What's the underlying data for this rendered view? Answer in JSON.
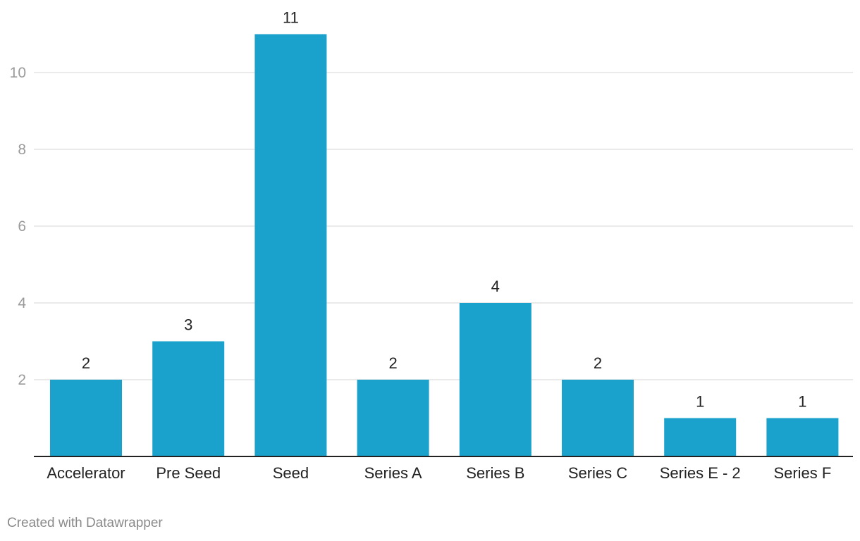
{
  "chart_data": {
    "type": "bar",
    "categories": [
      "Accelerator",
      "Pre Seed",
      "Seed",
      "Series A",
      "Series B",
      "Series C",
      "Series E - 2",
      "Series F"
    ],
    "values": [
      2,
      3,
      11,
      2,
      4,
      2,
      1,
      1
    ],
    "y_ticks": [
      2,
      4,
      6,
      8,
      10
    ],
    "ylim": [
      0,
      11
    ],
    "grid": true,
    "data_labels": true,
    "bar_color": "#1aa1cc",
    "grid_color": "#e3e3e3",
    "axis_color": "#222222",
    "tick_label_color": "#9a9a9a",
    "title": "",
    "xlabel": "",
    "ylabel": ""
  },
  "footer": {
    "credit": "Created with Datawrapper"
  }
}
